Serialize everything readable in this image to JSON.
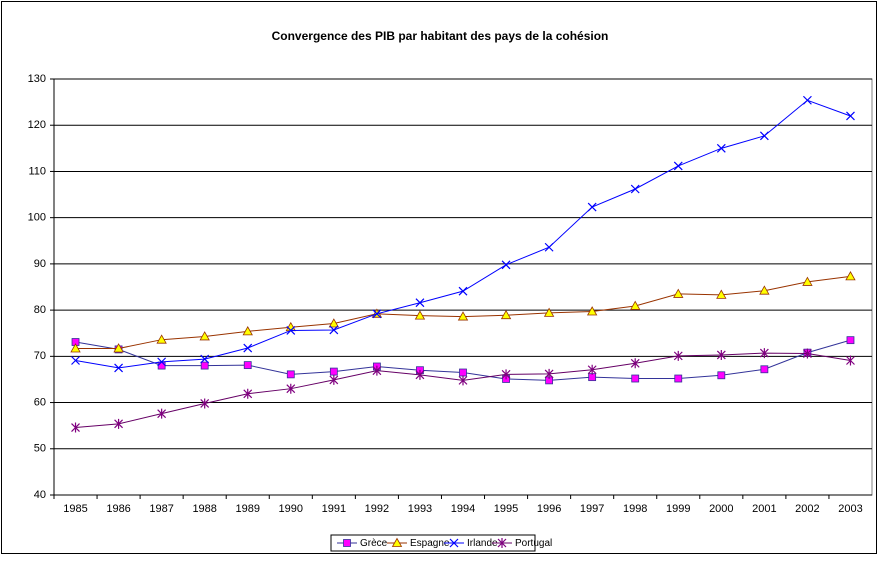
{
  "chart_data": {
    "type": "line",
    "title": "Convergence des PIB par habitant des pays de la cohésion",
    "categories": [
      "1985",
      "1986",
      "1987",
      "1988",
      "1989",
      "1990",
      "1991",
      "1992",
      "1993",
      "1994",
      "1995",
      "1996",
      "1997",
      "1998",
      "1999",
      "2000",
      "2001",
      "2002",
      "2003"
    ],
    "series": [
      {
        "name": "Grèce",
        "color": "#333399",
        "marker": "square",
        "marker_color": "#ff00ff",
        "values": [
          73.1,
          71.5,
          68.0,
          68.0,
          68.1,
          66.1,
          66.7,
          67.8,
          67.0,
          66.5,
          65.1,
          64.8,
          65.5,
          65.2,
          65.2,
          65.9,
          67.2,
          70.8,
          73.5
        ]
      },
      {
        "name": "Espagne",
        "color": "#993300",
        "marker": "triangle",
        "marker_color": "#ffff00",
        "values": [
          71.7,
          71.7,
          73.6,
          74.3,
          75.4,
          76.3,
          77.1,
          79.2,
          78.8,
          78.6,
          78.9,
          79.4,
          79.7,
          80.9,
          83.5,
          83.3,
          84.2,
          86.1,
          87.3
        ]
      },
      {
        "name": "Irlande",
        "color": "#0000ff",
        "marker": "x",
        "marker_color": "#0000ff",
        "values": [
          69.1,
          67.5,
          68.8,
          69.4,
          71.8,
          75.6,
          75.7,
          79.2,
          81.6,
          84.1,
          89.8,
          93.6,
          102.3,
          106.2,
          111.2,
          115.0,
          117.7,
          125.4,
          122.0
        ]
      },
      {
        "name": "Portugal",
        "color": "#660066",
        "marker": "star",
        "marker_color": "#800080",
        "values": [
          54.6,
          55.4,
          57.6,
          59.8,
          61.9,
          63.0,
          64.9,
          66.9,
          66.0,
          64.8,
          66.1,
          66.2,
          67.1,
          68.5,
          70.1,
          70.3,
          70.7,
          70.6,
          69.1
        ]
      }
    ],
    "ylim": [
      40,
      130
    ],
    "yticks": [
      40,
      50,
      60,
      70,
      80,
      90,
      100,
      110,
      120,
      130
    ],
    "grid": true,
    "legend": "bottom"
  }
}
